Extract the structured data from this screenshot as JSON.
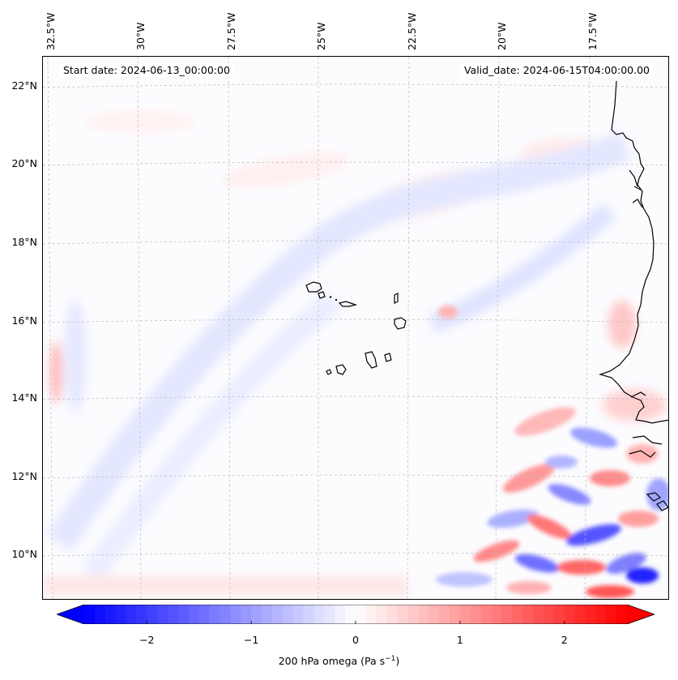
{
  "map": {
    "start_date": "Start date: 2024-06-13_00:00:00",
    "valid_date": "Valid_date: 2024-06-15T04:00:00.00",
    "lon_labels": [
      "32.5°W",
      "30°W",
      "27.5°W",
      "25°W",
      "22.5°W",
      "20°W",
      "17.5°W"
    ],
    "lat_labels": [
      "22°N",
      "20°N",
      "18°N",
      "16°N",
      "14°N",
      "12°N",
      "10°N"
    ],
    "coastline_color": "#000000",
    "gridlines": true,
    "region": "Cabo Verde Islands and West African coast (Senegal)"
  },
  "colorbar": {
    "ticks": [
      "−2",
      "−1",
      "0",
      "1",
      "2"
    ],
    "tick_values": [
      -2,
      -1,
      0,
      1,
      2
    ],
    "range": [
      -2.6,
      2.6
    ],
    "colormap": "bwr",
    "min_color": "#0000ff",
    "mid_color": "#ffffff",
    "max_color": "#ff0000",
    "label_main": "200 hPa omega (Pa s",
    "label_exp": "−1",
    "label_close": ")"
  }
}
